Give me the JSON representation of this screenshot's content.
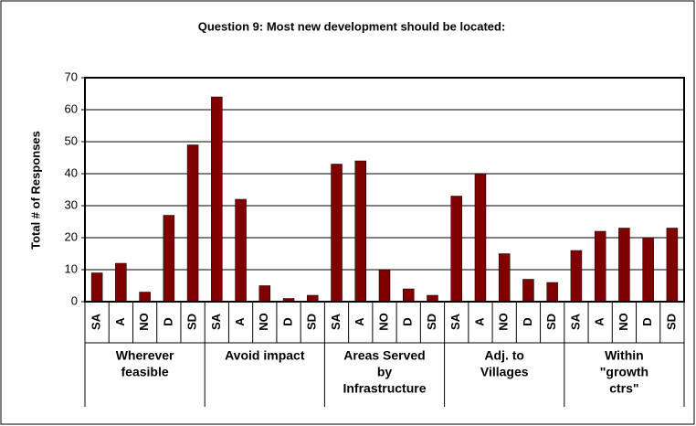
{
  "chart_data": {
    "type": "bar",
    "title": "Question 9: Most new development should be located:",
    "y_label": "Total # of Responses",
    "color": "#800000",
    "ylim": [
      0,
      70
    ],
    "yticks": [
      0,
      10,
      20,
      30,
      40,
      50,
      60,
      70
    ],
    "grid": true,
    "groups": [
      {
        "name": [
          "Wherever",
          "feasible"
        ],
        "categories": [
          "SA",
          "A",
          "NO",
          "D",
          "SD"
        ],
        "values": [
          9,
          12,
          3,
          27,
          49
        ]
      },
      {
        "name": [
          "Avoid impact"
        ],
        "categories": [
          "SA",
          "A",
          "NO",
          "D",
          "SD"
        ],
        "values": [
          64,
          32,
          5,
          1,
          2
        ]
      },
      {
        "name": [
          "Areas Served",
          "by",
          "Infrastructure"
        ],
        "categories": [
          "SA",
          "A",
          "NO",
          "D",
          "SD"
        ],
        "values": [
          43,
          44,
          10,
          4,
          2
        ]
      },
      {
        "name": [
          "Adj. to",
          "Villages"
        ],
        "categories": [
          "SA",
          "A",
          "NO",
          "D",
          "SD"
        ],
        "values": [
          33,
          40,
          15,
          7,
          6
        ]
      },
      {
        "name": [
          "Within",
          "\"growth",
          "ctrs\""
        ],
        "categories": [
          "SA",
          "A",
          "NO",
          "D",
          "SD"
        ],
        "values": [
          16,
          22,
          23,
          20,
          23
        ]
      }
    ]
  }
}
